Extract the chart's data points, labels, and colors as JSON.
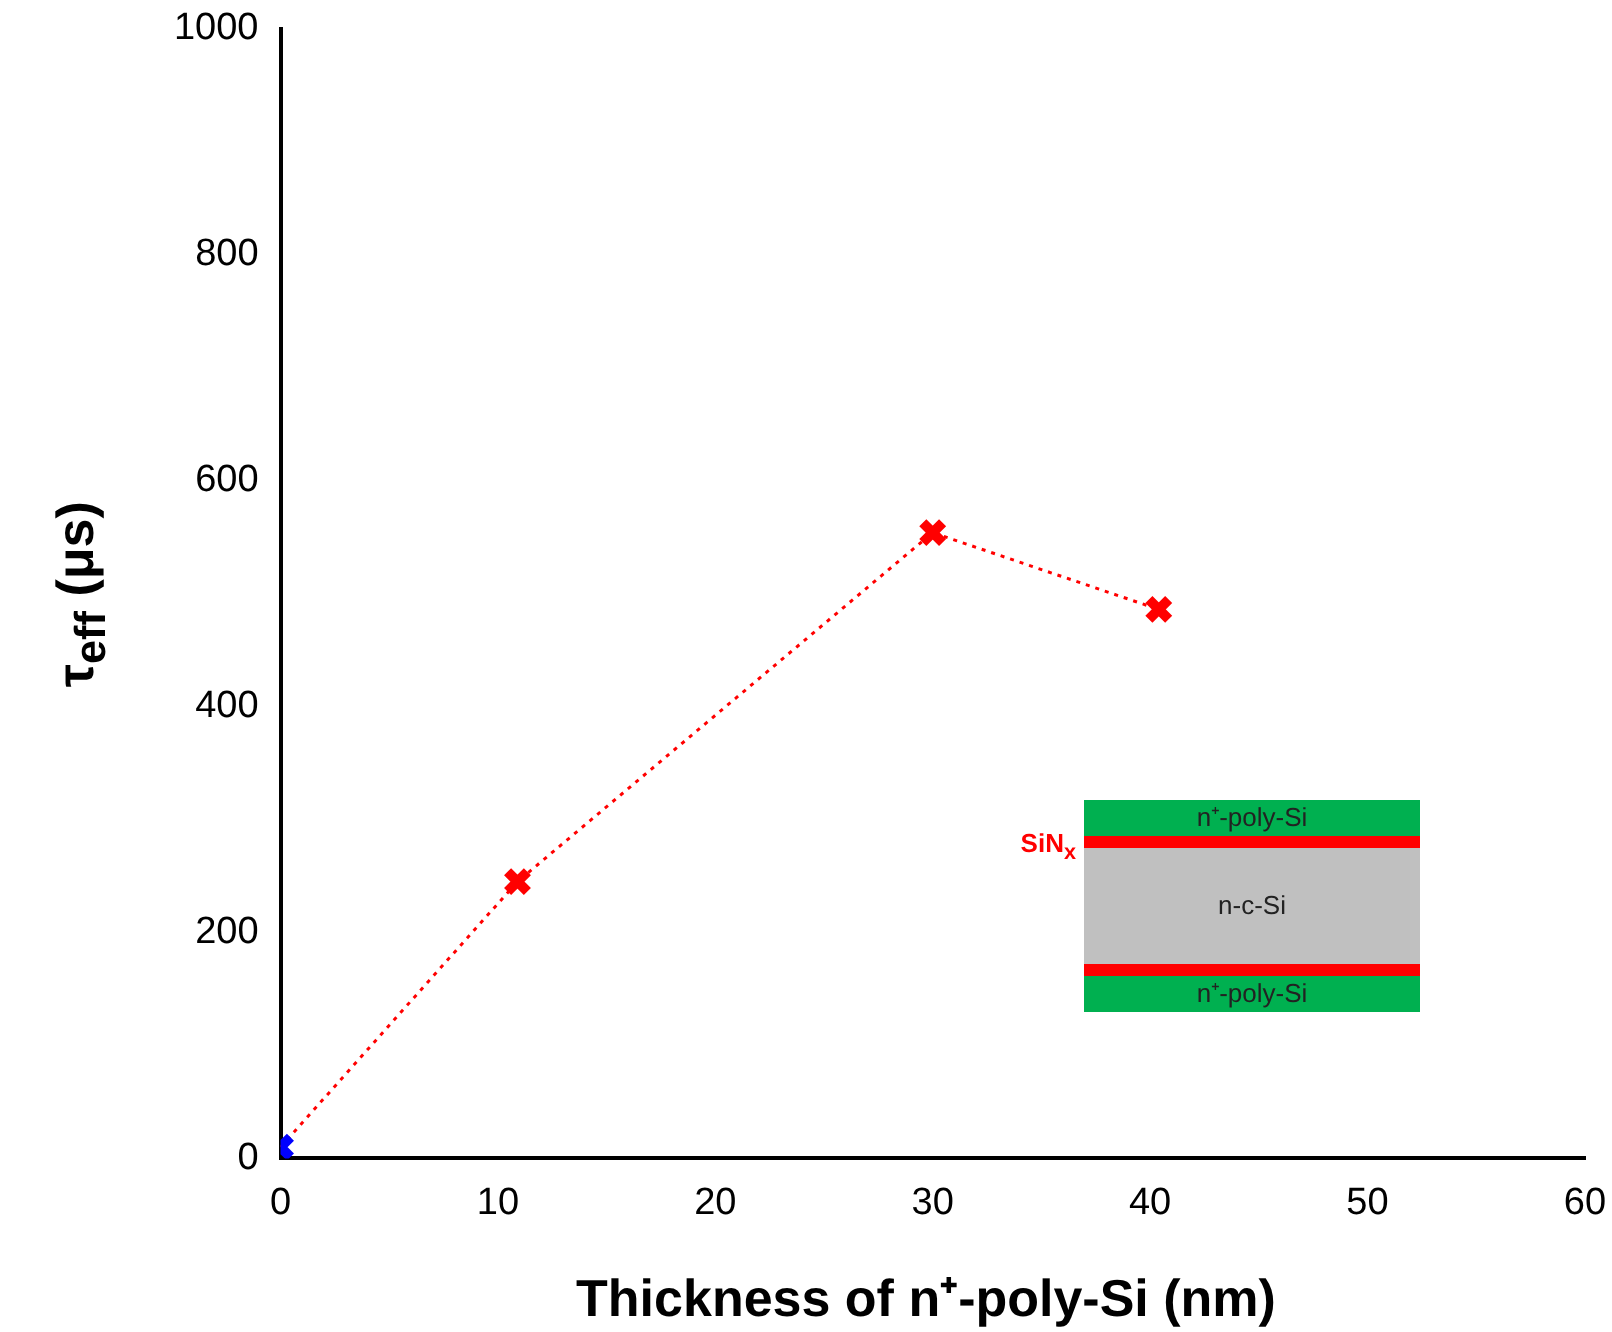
{
  "chart_data": {
    "type": "line",
    "xlabel": "Thickness of n⁺-poly-Si (nm)",
    "ylabel": "τ$_{eff}$  (μs)",
    "x": [
      0,
      10.9,
      30,
      40.4
    ],
    "series": [
      {
        "color": "#ff0000",
        "colors": [
          "#0000ff",
          "#ff0000",
          "#ff0000",
          "#ff0000"
        ],
        "values": [
          10,
          245,
          554,
          486
        ]
      }
    ],
    "xlim": [
      0,
      60
    ],
    "xticks": [
      0,
      10,
      20,
      30,
      40,
      50,
      60
    ],
    "ylim": [
      0,
      1000
    ],
    "yticks": [
      0,
      200,
      400,
      600,
      800,
      1000
    ],
    "grid": false,
    "legend": false,
    "marker": "cross",
    "line_style": "dotted",
    "annotations": [
      "n⁺-poly-Si",
      "SiN$_{x}$",
      "n-c-Si",
      "n⁺-poly-Si"
    ]
  }
}
